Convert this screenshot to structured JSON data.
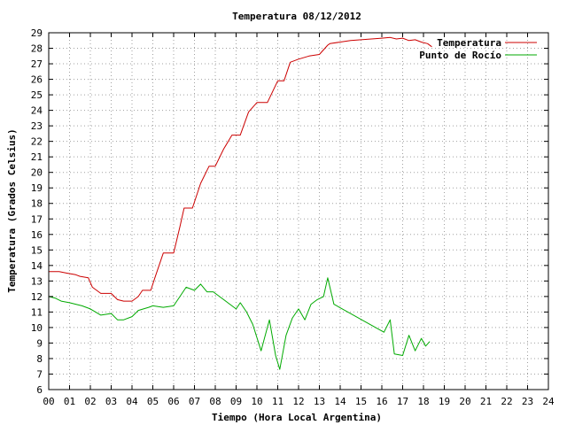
{
  "chart_data": {
    "type": "line",
    "title": "Temperatura 08/12/2012",
    "xlabel": "Tiempo (Hora Local Argentina)",
    "ylabel": "Temperatura (Grados Celsius)",
    "xlim": [
      0,
      24
    ],
    "ylim": [
      6,
      29
    ],
    "x_ticks": [
      "00",
      "01",
      "02",
      "03",
      "04",
      "05",
      "06",
      "07",
      "08",
      "09",
      "10",
      "11",
      "12",
      "13",
      "14",
      "15",
      "16",
      "17",
      "18",
      "19",
      "20",
      "21",
      "22",
      "23",
      "24"
    ],
    "y_ticks": [
      "6",
      "7",
      "8",
      "9",
      "10",
      "11",
      "12",
      "13",
      "14",
      "15",
      "16",
      "17",
      "18",
      "19",
      "20",
      "21",
      "22",
      "23",
      "24",
      "25",
      "26",
      "27",
      "28",
      "29"
    ],
    "grid": true,
    "legend_position": "top-right",
    "series": [
      {
        "name": "Temperatura",
        "color": "#cc0000",
        "x": [
          0,
          0.5,
          0.9,
          1.3,
          1.5,
          1.9,
          2.1,
          2.5,
          3.0,
          3.3,
          3.6,
          4.0,
          4.3,
          4.5,
          4.9,
          5.1,
          5.5,
          6.0,
          6.3,
          6.5,
          6.9,
          7.3,
          7.7,
          8.0,
          8.4,
          8.8,
          9.2,
          9.6,
          10.0,
          10.5,
          11.0,
          11.3,
          11.6,
          12.0,
          12.5,
          13.0,
          13.4,
          13.5,
          14.0,
          14.5,
          15.0,
          15.5,
          16.0,
          16.4,
          16.7,
          17.0,
          17.3,
          17.6,
          17.9,
          18.2,
          18.4
        ],
        "values": [
          13.6,
          13.6,
          13.5,
          13.4,
          13.3,
          13.2,
          12.6,
          12.2,
          12.2,
          11.8,
          11.7,
          11.7,
          12.0,
          12.4,
          12.4,
          13.2,
          14.8,
          14.8,
          16.5,
          17.7,
          17.7,
          19.3,
          20.4,
          20.4,
          21.5,
          22.4,
          22.4,
          23.9,
          24.5,
          24.5,
          25.9,
          25.9,
          27.1,
          27.3,
          27.5,
          27.6,
          28.2,
          28.3,
          28.4,
          28.5,
          28.55,
          28.6,
          28.65,
          28.7,
          28.6,
          28.65,
          28.5,
          28.55,
          28.4,
          28.3,
          28.1
        ]
      },
      {
        "name": "Punto de Rocío",
        "color": "#00aa00",
        "x": [
          0,
          0.3,
          0.6,
          1.0,
          1.3,
          1.6,
          2.0,
          2.5,
          3.0,
          3.3,
          3.6,
          4.0,
          4.3,
          4.8,
          5.0,
          5.5,
          6.0,
          6.3,
          6.6,
          7.0,
          7.3,
          7.6,
          7.9,
          8.3,
          8.6,
          9.0,
          9.2,
          9.5,
          9.8,
          10.2,
          10.6,
          10.9,
          11.1,
          11.4,
          11.7,
          12.0,
          12.3,
          12.6,
          12.9,
          13.2,
          13.4,
          13.7,
          16.1,
          16.4,
          16.6,
          17.0,
          17.3,
          17.6,
          17.9,
          18.1,
          18.3
        ],
        "values": [
          12.0,
          11.9,
          11.7,
          11.6,
          11.5,
          11.4,
          11.2,
          10.8,
          10.9,
          10.5,
          10.5,
          10.7,
          11.1,
          11.3,
          11.4,
          11.3,
          11.4,
          12.0,
          12.6,
          12.4,
          12.8,
          12.3,
          12.3,
          11.9,
          11.6,
          11.2,
          11.6,
          11.0,
          10.2,
          8.5,
          10.5,
          8.2,
          7.3,
          9.5,
          10.6,
          11.2,
          10.5,
          11.5,
          11.8,
          12.0,
          13.2,
          11.5,
          9.7,
          10.5,
          8.3,
          8.2,
          9.5,
          8.5,
          9.3,
          8.8,
          9.1
        ]
      }
    ]
  }
}
